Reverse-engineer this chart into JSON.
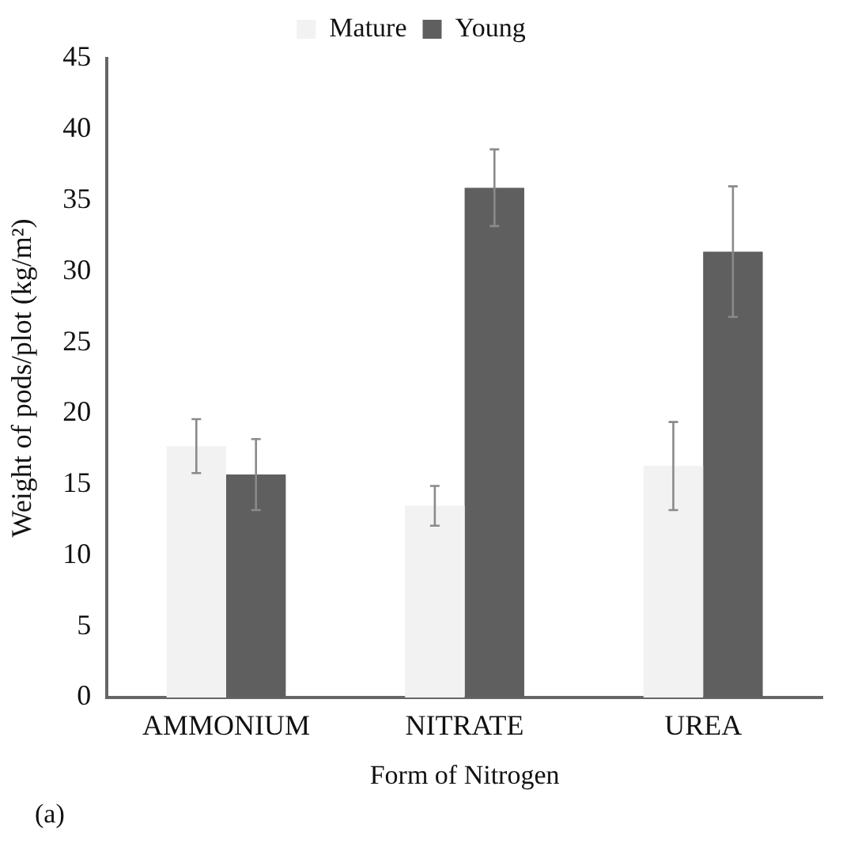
{
  "chart_data": {
    "type": "bar",
    "xlabel": "Form of Nitrogen",
    "ylabel": "Weight of pods/plot (kg/m²)",
    "categories": [
      "AMMONIUM",
      "NITRATE",
      "UREA"
    ],
    "series": [
      {
        "name": "Mature",
        "color": "#f2f2f2",
        "values": [
          17.7,
          13.5,
          16.3
        ],
        "errors": [
          1.9,
          1.4,
          3.1
        ]
      },
      {
        "name": "Young",
        "color": "#5f5f5f",
        "values": [
          15.7,
          35.9,
          31.4
        ],
        "errors": [
          2.5,
          2.7,
          4.6
        ]
      }
    ],
    "ylim": [
      0,
      45
    ],
    "yticks": [
      0,
      5,
      10,
      15,
      20,
      25,
      30,
      35,
      40,
      45
    ],
    "grid": false,
    "legend": "top",
    "annotations": [
      "(a)"
    ]
  }
}
